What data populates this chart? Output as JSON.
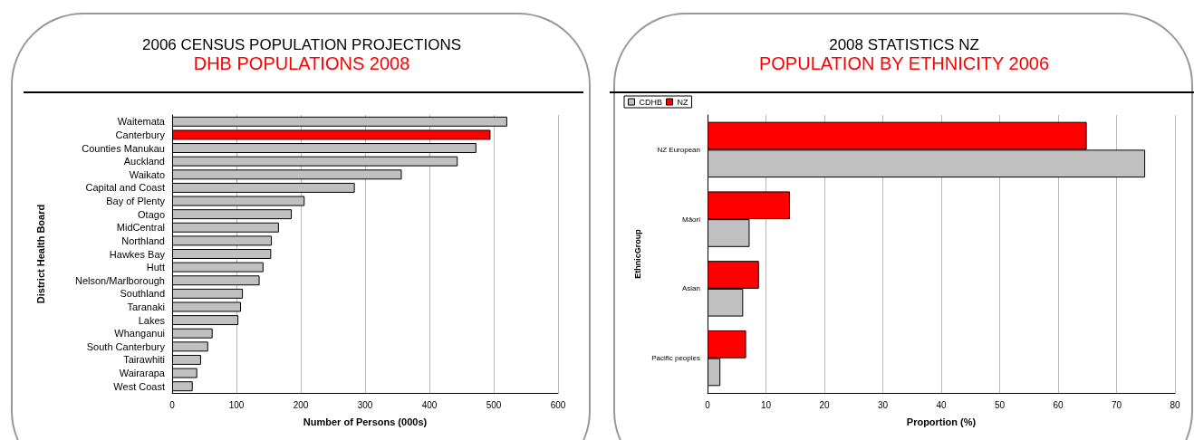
{
  "chart_data": [
    {
      "type": "bar",
      "orientation": "horizontal",
      "title": "2006 CENSUS POPULATION PROJECTIONS",
      "subtitle": "DHB POPULATIONS 2008",
      "xlabel": "Number of Persons (000s)",
      "ylabel": "District Health Board",
      "categories": [
        "Waitemata",
        "Canterbury",
        "Counties Manukau",
        "Auckland",
        "Waikato",
        "Capital and Coast",
        "Bay of Plenty",
        "Otago",
        "MidCentral",
        "Northland",
        "Hawkes Bay",
        "Hutt",
        "Nelson/Marlborough",
        "Southland",
        "Taranaki",
        "Lakes",
        "Whanganui",
        "South Canterbury",
        "Tairawhiti",
        "Wairarapa",
        "West Coast"
      ],
      "values": [
        521,
        495,
        473,
        444,
        357,
        284,
        206,
        186,
        166,
        155,
        154,
        142,
        136,
        110,
        107,
        103,
        63,
        56,
        45,
        39,
        32
      ],
      "colors": [
        "#c0c0c0",
        "#ff0000",
        "#c0c0c0",
        "#c0c0c0",
        "#c0c0c0",
        "#c0c0c0",
        "#c0c0c0",
        "#c0c0c0",
        "#c0c0c0",
        "#c0c0c0",
        "#c0c0c0",
        "#c0c0c0",
        "#c0c0c0",
        "#c0c0c0",
        "#c0c0c0",
        "#c0c0c0",
        "#c0c0c0",
        "#c0c0c0",
        "#c0c0c0",
        "#c0c0c0",
        "#c0c0c0"
      ],
      "xlim": [
        0,
        600
      ],
      "xticks": [
        0,
        100,
        200,
        300,
        400,
        500,
        600
      ],
      "grid": "x",
      "legend": false
    },
    {
      "type": "bar",
      "orientation": "horizontal",
      "title": "2008 STATISTICS NZ",
      "subtitle": "POPULATION BY ETHNICITY 2006",
      "xlabel": "Proportion (%)",
      "ylabel": "EthnicGroup",
      "categories": [
        "NZ European",
        "Māori",
        "Asian",
        "Pacific peoples"
      ],
      "series": [
        {
          "name": "CDHB",
          "color": "#c0c0c0",
          "values": [
            74.9,
            7.2,
            6.1,
            2.2
          ]
        },
        {
          "name": "NZ",
          "color": "#ff0000",
          "values": [
            64.9,
            14.1,
            8.8,
            6.6
          ]
        }
      ],
      "xlim": [
        0,
        80
      ],
      "xticks": [
        0,
        10,
        20,
        30,
        40,
        50,
        60,
        70,
        80
      ],
      "grid": "x",
      "legend": "top left"
    }
  ]
}
